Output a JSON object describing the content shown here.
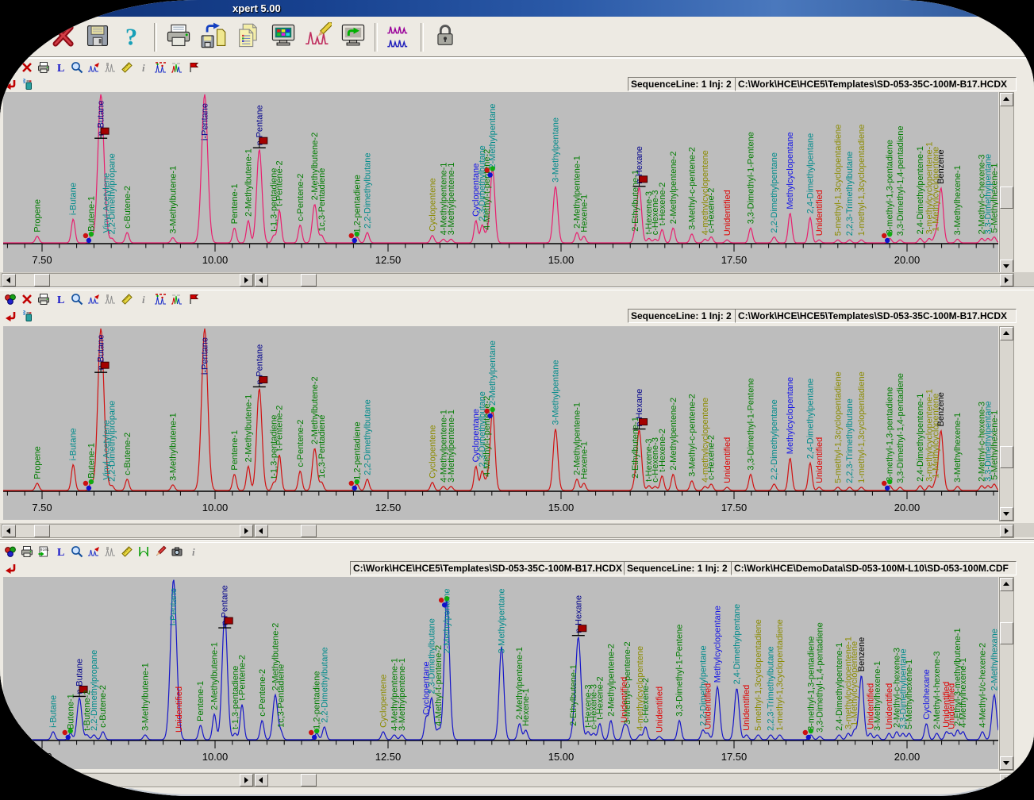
{
  "window": {
    "title": "xpert 5.00"
  },
  "main_toolbar": {
    "icons": [
      "close",
      "save",
      "help",
      "|",
      "print",
      "save-as",
      "report",
      "display",
      "signal-edit",
      "send-display",
      "|",
      "overlay-traces",
      "|",
      "lock"
    ]
  },
  "axis": {
    "major_labels": [
      "7.50",
      "10.00",
      "12.50",
      "15.00",
      "17.50",
      "20.00"
    ],
    "major_values": [
      7.5,
      10.0,
      12.5,
      15.0,
      17.5,
      20.0
    ],
    "minor_step_min": 0.25,
    "start_min": 7.0,
    "end_min": 21.3,
    "unit": "minutes"
  },
  "label_colors": {
    "green": "#007c00",
    "teal": "#008b8b",
    "navy": "#00008b",
    "blue": "#1414e6",
    "olive": "#8b8b00",
    "red": "#e00000",
    "black": "#000000"
  },
  "panels": [
    {
      "name": "chromatogram-top",
      "trace_color": "#e81f6e",
      "peaks": "hcdx",
      "toolbar_icons": [
        "overlay-balls",
        "delete-x",
        "print-small",
        "label-L",
        "zoom",
        "peaks-export",
        "peaks-grey",
        "ruler",
        "info",
        "peaks-annotated",
        "peaks-multicolor",
        "flag-tool"
      ],
      "corner_icons": [
        "return-arrow",
        "spray"
      ],
      "info_boxes": [
        {
          "name": "sequence-info",
          "text": "SequenceLine: 1 Inj: 2"
        },
        {
          "name": "template-path",
          "text": "C:\\Work\\HCE\\HCE5\\Templates\\SD-053-35C-100M-B17.HCDX"
        }
      ]
    },
    {
      "name": "chromatogram-middle",
      "trace_color": "#d01212",
      "peaks": "hcdx",
      "toolbar_icons": [
        "overlay-balls",
        "delete-x",
        "print-small",
        "label-L",
        "zoom",
        "peaks-export",
        "peaks-grey",
        "ruler",
        "info",
        "peaks-annotated",
        "peaks-multicolor",
        "flag-tool"
      ],
      "corner_icons": [
        "return-arrow",
        "spray"
      ],
      "info_boxes": [
        {
          "name": "sequence-info",
          "text": "SequenceLine: 1 Inj: 2"
        },
        {
          "name": "template-path",
          "text": "C:\\Work\\HCE\\HCE5\\Templates\\SD-053-35C-100M-B17.HCDX"
        }
      ]
    },
    {
      "name": "chromatogram-bottom",
      "trace_color": "#1616c8",
      "peaks": "cdf",
      "toolbar_icons": [
        "overlay-balls",
        "print-small",
        "export-data",
        "label-L",
        "zoom",
        "peaks-export",
        "peaks-grey",
        "ruler",
        "peak-bounds",
        "pencil",
        "camera",
        "info"
      ],
      "corner_icons": [
        "return-arrow"
      ],
      "info_boxes": [
        {
          "name": "template-path",
          "text": "C:\\Work\\HCE\\HCE5\\Templates\\SD-053-35C-100M-B17.HCDX"
        },
        {
          "name": "sequence-info",
          "text": "SequenceLine: 1 Inj: 2"
        },
        {
          "name": "data-path",
          "text": "C:\\Work\\HCE\\DemoData\\SD-053-100M-L10\\SD-053-100M.CDF"
        }
      ]
    }
  ],
  "peak_sets": {
    "hcdx": [
      {
        "t": 7.43,
        "h": 0.045,
        "n": "Propene",
        "c": "green"
      },
      {
        "t": 7.95,
        "h": 0.16,
        "n": "i-Butane",
        "c": "teal"
      },
      {
        "t": 8.21,
        "h": 0.05,
        "n": "Butene-1",
        "c": "green",
        "dots": true
      },
      {
        "t": 8.35,
        "h": 1.0,
        "n": "n-Butane",
        "c": "navy",
        "flag": true
      },
      {
        "t": 8.43,
        "h": 0.04,
        "n": "Vinyl-Acetylene",
        "c": "teal"
      },
      {
        "t": 8.51,
        "h": 0.03,
        "n": "2,2-Dimethylpropane",
        "c": "teal"
      },
      {
        "t": 8.73,
        "h": 0.07,
        "n": "c-Butene-2",
        "c": "green"
      },
      {
        "t": 9.39,
        "h": 0.035,
        "n": "3-Methylbutene-1",
        "c": "green"
      },
      {
        "t": 9.85,
        "h": 1.0,
        "n": "i-Pentane",
        "c": "navy"
      },
      {
        "t": 10.28,
        "h": 0.1,
        "n": "Pentene-1",
        "c": "green"
      },
      {
        "t": 10.48,
        "h": 0.15,
        "n": "2-Methylbutene-1",
        "c": "green"
      },
      {
        "t": 10.64,
        "h": 0.63,
        "n": "n-Pentane",
        "c": "navy",
        "flag": true
      },
      {
        "t": 10.85,
        "h": 0.05,
        "n": "t-1,3-pentadiene",
        "c": "green"
      },
      {
        "t": 10.93,
        "h": 0.22,
        "n": "t-Pentene-2",
        "c": "green"
      },
      {
        "t": 11.23,
        "h": 0.12,
        "n": "c-Pentene-2",
        "c": "green"
      },
      {
        "t": 11.44,
        "h": 0.26,
        "n": "2-Methylbutene-2",
        "c": "green"
      },
      {
        "t": 11.54,
        "h": 0.05,
        "n": "1c,3-Pentadiene",
        "c": "green"
      },
      {
        "t": 12.05,
        "h": 0.04,
        "n": "1,2-pentadiene",
        "c": "green",
        "dots": true
      },
      {
        "t": 12.2,
        "h": 0.07,
        "n": "2,2-Dimethylbutane",
        "c": "teal"
      },
      {
        "t": 13.14,
        "h": 0.05,
        "n": "Cyclopentene",
        "c": "olive"
      },
      {
        "t": 13.3,
        "h": 0.025,
        "n": "4-Methylpentene-1",
        "c": "green"
      },
      {
        "t": 13.41,
        "h": 0.025,
        "n": "3-Methylpentene-1",
        "c": "green"
      },
      {
        "t": 13.77,
        "h": 0.15,
        "n": "Cyclopentane",
        "c": "blue"
      },
      {
        "t": 13.86,
        "h": 0.12,
        "n": "2,3-Dimethylbutane",
        "c": "teal"
      },
      {
        "t": 13.93,
        "h": 0.06,
        "n": "4-Methyl-t-pentene-2",
        "c": "green"
      },
      {
        "t": 14.01,
        "h": 0.5,
        "n": "2-Methylpentane",
        "c": "teal",
        "dots": true
      },
      {
        "t": 14.92,
        "h": 0.38,
        "n": "3-Methylpentane",
        "c": "teal"
      },
      {
        "t": 15.23,
        "h": 0.07,
        "n": "2-Methylpentene-1",
        "c": "green"
      },
      {
        "t": 15.33,
        "h": 0.045,
        "n": "Hexene-1",
        "c": "green"
      },
      {
        "t": 16.07,
        "h": 0.05,
        "n": "2-Ethylbutene-1",
        "c": "green"
      },
      {
        "t": 16.13,
        "h": 0.37,
        "n": "n-Hexane",
        "c": "navy",
        "flag": true
      },
      {
        "t": 16.27,
        "h": 0.03,
        "n": "t-Hexene-3",
        "c": "green"
      },
      {
        "t": 16.36,
        "h": 0.025,
        "n": "c-Hexene-3",
        "c": "green"
      },
      {
        "t": 16.46,
        "h": 0.09,
        "n": "t-Hexene-2",
        "c": "green"
      },
      {
        "t": 16.62,
        "h": 0.1,
        "n": "2-Methylpentene-2",
        "c": "green"
      },
      {
        "t": 16.89,
        "h": 0.06,
        "n": "3-Methyl-c-pentene-2",
        "c": "green"
      },
      {
        "t": 17.08,
        "h": 0.025,
        "n": "4-methylcyclopentene",
        "c": "olive"
      },
      {
        "t": 17.17,
        "h": 0.04,
        "n": "c-Hexene-2",
        "c": "green"
      },
      {
        "t": 17.4,
        "h": 0.02,
        "n": "Unidentified",
        "c": "red"
      },
      {
        "t": 17.74,
        "h": 0.1,
        "n": "3,3-Dimethyl-1-Pentene",
        "c": "green"
      },
      {
        "t": 18.08,
        "h": 0.04,
        "n": "2,2-Dimethylpentane",
        "c": "teal"
      },
      {
        "t": 18.31,
        "h": 0.2,
        "n": "Methylcyclopentane",
        "c": "blue"
      },
      {
        "t": 18.6,
        "h": 0.17,
        "n": "2,4-Dimethylpentane",
        "c": "teal"
      },
      {
        "t": 18.73,
        "h": 0.02,
        "n": "Unidentified",
        "c": "red"
      },
      {
        "t": 19.0,
        "h": 0.02,
        "n": "5-methyl-1,3cyclopentadiene",
        "c": "olive"
      },
      {
        "t": 19.17,
        "h": 0.02,
        "n": "2,2,3-Trimethylbutane",
        "c": "teal"
      },
      {
        "t": 19.34,
        "h": 0.02,
        "n": "1-methyl-1,3cyclopentadiene",
        "c": "olive"
      },
      {
        "t": 19.75,
        "h": 0.03,
        "n": "3-methyl-1,3-pentadiene",
        "c": "green",
        "dots": true
      },
      {
        "t": 19.9,
        "h": 0.02,
        "n": "3,3-Dimethyl-1,4-pentadiene",
        "c": "green"
      },
      {
        "t": 20.19,
        "h": 0.03,
        "n": "2,4-Dimethylpentene-1",
        "c": "green"
      },
      {
        "t": 20.32,
        "h": 0.03,
        "n": "3-methylcyclopentene-1",
        "c": "olive"
      },
      {
        "t": 20.41,
        "h": 0.05,
        "n": "1-Methylcyclopentene",
        "c": "olive"
      },
      {
        "t": 20.49,
        "h": 0.37,
        "n": "Benzene",
        "c": "black"
      },
      {
        "t": 20.73,
        "h": 0.025,
        "n": "3-Methylhexene-1",
        "c": "green"
      },
      {
        "t": 21.08,
        "h": 0.03,
        "n": "2-Methyl-c-hexene-3",
        "c": "green"
      },
      {
        "t": 21.17,
        "h": 0.03,
        "n": "3,3-Dimethylpentane",
        "c": "teal"
      },
      {
        "t": 21.26,
        "h": 0.04,
        "n": "5-Methylhexene-1",
        "c": "green"
      }
    ],
    "cdf": [
      {
        "t": 7.66,
        "h": 0.05,
        "n": "i-Butane",
        "c": "teal"
      },
      {
        "t": 7.91,
        "h": 0.04,
        "n": "Butene-1",
        "c": "green",
        "dots": true
      },
      {
        "t": 8.04,
        "h": 0.26,
        "n": "n-Butane",
        "c": "navy",
        "flag": true
      },
      {
        "t": 8.15,
        "h": 0.03,
        "n": "t-Butene-2",
        "c": "green"
      },
      {
        "t": 8.25,
        "h": 0.03,
        "n": "2,2-Dimethylpropane",
        "c": "teal"
      },
      {
        "t": 8.38,
        "h": 0.05,
        "n": "c-Butene-2",
        "c": "green"
      },
      {
        "t": 8.99,
        "h": 0.03,
        "n": "3-Methylbutene-1",
        "c": "green"
      },
      {
        "t": 9.4,
        "h": 1.0,
        "n": "i-Pentane",
        "c": "teal"
      },
      {
        "t": 9.48,
        "h": 0.02,
        "n": "Unidentified",
        "c": "red"
      },
      {
        "t": 9.79,
        "h": 0.09,
        "n": "Pentene-1",
        "c": "green"
      },
      {
        "t": 9.99,
        "h": 0.16,
        "n": "2-Methylbutene-1",
        "c": "green"
      },
      {
        "t": 10.14,
        "h": 0.78,
        "n": "n-Pentane",
        "c": "navy",
        "flag": true
      },
      {
        "t": 10.29,
        "h": 0.04,
        "n": "t-1,3-pentadiene",
        "c": "green"
      },
      {
        "t": 10.39,
        "h": 0.22,
        "n": "t-Pentene-2",
        "c": "green"
      },
      {
        "t": 10.68,
        "h": 0.12,
        "n": "c-Pentene-2",
        "c": "green"
      },
      {
        "t": 10.87,
        "h": 0.28,
        "n": "2-Methylbutene-2",
        "c": "green"
      },
      {
        "t": 10.95,
        "h": 0.05,
        "n": "1c,3-Pentadiene",
        "c": "green"
      },
      {
        "t": 11.47,
        "h": 0.04,
        "n": "1,2-pentadiene",
        "c": "green",
        "dots": true
      },
      {
        "t": 11.58,
        "h": 0.08,
        "n": "2,2-Dimethylbutane",
        "c": "teal"
      },
      {
        "t": 12.43,
        "h": 0.05,
        "n": "Cyclopentene",
        "c": "olive"
      },
      {
        "t": 12.59,
        "h": 0.03,
        "n": "4-Methylpentene-1",
        "c": "green"
      },
      {
        "t": 12.7,
        "h": 0.03,
        "n": "3-Methylpentene-1",
        "c": "green"
      },
      {
        "t": 13.05,
        "h": 0.13,
        "n": "Cyclopentane",
        "c": "blue"
      },
      {
        "t": 13.13,
        "h": 0.26,
        "n": "2,3-Dimethylbutane",
        "c": "teal"
      },
      {
        "t": 13.23,
        "h": 0.06,
        "n": "4-Methyl-t-pentene-2",
        "c": "green"
      },
      {
        "t": 13.35,
        "h": 0.88,
        "n": "2-Methylpentane",
        "c": "teal",
        "dots": true
      },
      {
        "t": 14.14,
        "h": 0.58,
        "n": "3-Methylpentane",
        "c": "teal"
      },
      {
        "t": 14.4,
        "h": 0.1,
        "n": "2-Methylpentene-1",
        "c": "green"
      },
      {
        "t": 14.49,
        "h": 0.06,
        "n": "Hexene-1",
        "c": "green"
      },
      {
        "t": 15.18,
        "h": 0.06,
        "n": "2-Ethylbutene-1",
        "c": "green"
      },
      {
        "t": 15.25,
        "h": 0.64,
        "n": "n-Hexane",
        "c": "navy",
        "flag": true
      },
      {
        "t": 15.39,
        "h": 0.05,
        "n": "t-Hexene-3",
        "c": "green"
      },
      {
        "t": 15.47,
        "h": 0.04,
        "n": "c-Hexene-3",
        "c": "green"
      },
      {
        "t": 15.56,
        "h": 0.1,
        "n": "t-Hexene-2",
        "c": "green"
      },
      {
        "t": 15.72,
        "h": 0.12,
        "n": "2-Methylpentene-2",
        "c": "green"
      },
      {
        "t": 15.91,
        "h": 0.08,
        "n": "Unidentified",
        "c": "red"
      },
      {
        "t": 15.96,
        "h": 0.07,
        "n": "3-Methyl-c-pentene-2",
        "c": "green"
      },
      {
        "t": 16.14,
        "h": 0.03,
        "n": "4-methylcyclopentene",
        "c": "olive"
      },
      {
        "t": 16.22,
        "h": 0.08,
        "n": "c-Hexene-2",
        "c": "green"
      },
      {
        "t": 16.42,
        "h": 0.02,
        "n": "Unidentified",
        "c": "red"
      },
      {
        "t": 16.71,
        "h": 0.12,
        "n": "3,3-Dimethyl-1-Pentene",
        "c": "green"
      },
      {
        "t": 17.05,
        "h": 0.06,
        "n": "2,2-Dimethylpentane",
        "c": "teal"
      },
      {
        "t": 17.12,
        "h": 0.04,
        "n": "Unidentified",
        "c": "red"
      },
      {
        "t": 17.26,
        "h": 0.33,
        "n": "Methylcyclopentane",
        "c": "blue"
      },
      {
        "t": 17.54,
        "h": 0.32,
        "n": "2,4-Dimethylpentane",
        "c": "teal"
      },
      {
        "t": 17.68,
        "h": 0.03,
        "n": "Unidentified",
        "c": "red"
      },
      {
        "t": 17.85,
        "h": 0.03,
        "n": "5-methyl-1,3cyclopentadiene",
        "c": "olive"
      },
      {
        "t": 18.03,
        "h": 0.03,
        "n": "2,2,3-Trimethylbutane",
        "c": "teal"
      },
      {
        "t": 18.16,
        "h": 0.03,
        "n": "1-methyl-1,3cyclopentadiene",
        "c": "olive"
      },
      {
        "t": 18.61,
        "h": 0.03,
        "n": "3-methyl-1,3-pentadiene",
        "c": "green",
        "dots": true
      },
      {
        "t": 18.74,
        "h": 0.02,
        "n": "3,3-Dimethyl-1,4-pentadiene",
        "c": "green"
      },
      {
        "t": 19.02,
        "h": 0.03,
        "n": "2,4-Dimethylpentene-1",
        "c": "green"
      },
      {
        "t": 19.15,
        "h": 0.04,
        "n": "3-methylcyclopentene-1",
        "c": "olive"
      },
      {
        "t": 19.24,
        "h": 0.06,
        "n": "1-Methylcyclopentene",
        "c": "olive"
      },
      {
        "t": 19.34,
        "h": 0.4,
        "n": "Benzene",
        "c": "black"
      },
      {
        "t": 19.47,
        "h": 0.04,
        "n": "Unidentified",
        "c": "red"
      },
      {
        "t": 19.57,
        "h": 0.03,
        "n": "3-Methylhexene-1",
        "c": "green"
      },
      {
        "t": 19.74,
        "h": 0.04,
        "n": "Unidentified",
        "c": "red"
      },
      {
        "t": 19.85,
        "h": 0.05,
        "n": "2-Methyl-c-hexene-3",
        "c": "green"
      },
      {
        "t": 19.94,
        "h": 0.04,
        "n": "3,3-Dimethylpentane",
        "c": "teal"
      },
      {
        "t": 20.03,
        "h": 0.04,
        "n": "5-Methylhexene-1",
        "c": "green"
      },
      {
        "t": 20.28,
        "h": 0.1,
        "n": "Cyclohexane",
        "c": "blue"
      },
      {
        "t": 20.43,
        "h": 0.04,
        "n": "2-Methyl-t-hexene-3",
        "c": "green"
      },
      {
        "t": 20.57,
        "h": 0.05,
        "n": "Unidentified",
        "c": "red"
      },
      {
        "t": 20.64,
        "h": 0.04,
        "n": "Unidentified",
        "c": "red"
      },
      {
        "t": 20.73,
        "h": 0.06,
        "n": "2-Ethyl-3-methylbutene-1",
        "c": "green"
      },
      {
        "t": 20.81,
        "h": 0.05,
        "n": "4-Methylhexene-1",
        "c": "green"
      },
      {
        "t": 21.09,
        "h": 0.05,
        "n": "4-Methyl-t/c-hexene-2",
        "c": "green"
      },
      {
        "t": 21.26,
        "h": 0.28,
        "n": "2-Methylhexane",
        "c": "teal"
      }
    ]
  }
}
